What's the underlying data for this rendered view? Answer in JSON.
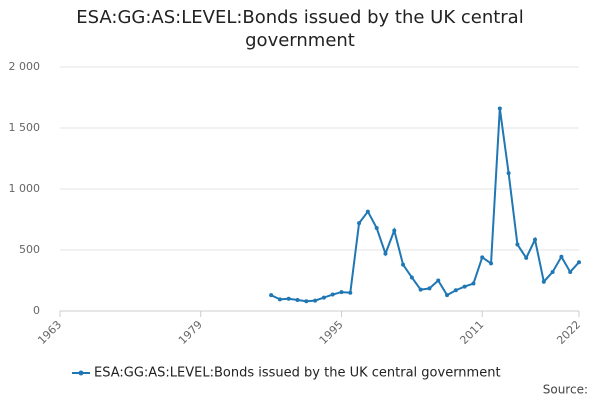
{
  "chart_data": {
    "type": "line",
    "title": "ESA:GG:AS:LEVEL:Bonds issued by the UK central government",
    "x": [
      1987,
      1988,
      1989,
      1990,
      1991,
      1992,
      1993,
      1994,
      1995,
      1996,
      1997,
      1998,
      1999,
      2000,
      2001,
      2002,
      2003,
      2004,
      2005,
      2006,
      2007,
      2008,
      2009,
      2010,
      2011,
      2012,
      2013,
      2014,
      2015,
      2016,
      2017,
      2018,
      2019,
      2020,
      2021,
      2022
    ],
    "series": [
      {
        "name": "ESA:GG:AS:LEVEL:Bonds issued by the UK central government",
        "color": "#1f77b4",
        "values": [
          130,
          95,
          100,
          90,
          80,
          85,
          110,
          135,
          155,
          150,
          720,
          815,
          680,
          470,
          660,
          380,
          275,
          175,
          185,
          250,
          130,
          170,
          200,
          225,
          440,
          390,
          1660,
          1130,
          545,
          435,
          585,
          240,
          320,
          445,
          320,
          400
        ]
      }
    ],
    "xlim": [
      1963,
      2022
    ],
    "xticks": [
      1963,
      1979,
      1995,
      2011,
      2022
    ],
    "ylim": [
      0,
      2000
    ],
    "yticks": [
      0,
      500,
      {
        "value": 1000,
        "label": "1 000"
      },
      {
        "value": 1500,
        "label": "1 500"
      },
      {
        "value": 2000,
        "label": "2 000"
      }
    ],
    "grid": true,
    "source": "Source:"
  }
}
